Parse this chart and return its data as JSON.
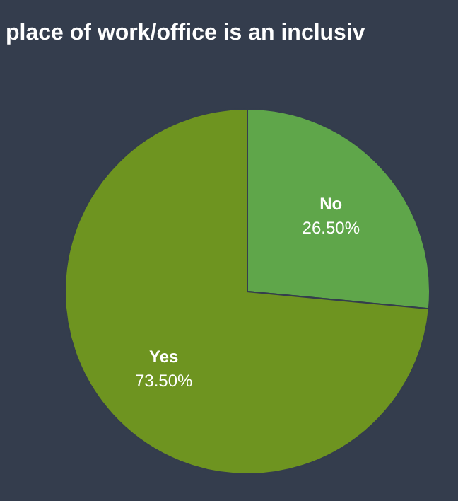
{
  "chart_data": {
    "type": "pie",
    "title": "place of work/office is an inclusiv",
    "categories": [
      "No",
      "Yes"
    ],
    "values": [
      26.5,
      73.5
    ],
    "colors": [
      "#5fa64a",
      "#6e9420"
    ],
    "value_labels": [
      "26.50%",
      "73.50%"
    ]
  }
}
